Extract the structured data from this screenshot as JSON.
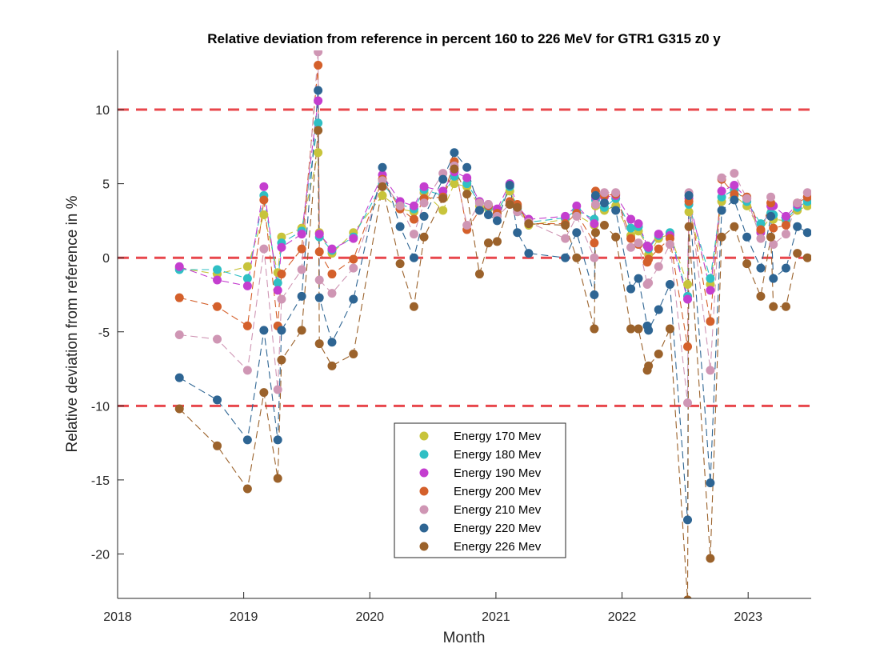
{
  "chart_data": {
    "type": "line",
    "title": "Relative deviation from reference in percent 160 to 226 MeV for GTR1 G315 z0 y",
    "xlabel": "Month",
    "ylabel": "Relative deviation from reference in %",
    "xlim": [
      2018,
      2023.5
    ],
    "ylim": [
      -23,
      14
    ],
    "xticks": [
      2018,
      2019,
      2020,
      2021,
      2022,
      2023
    ],
    "yticks": [
      -20,
      -15,
      -10,
      -5,
      0,
      5,
      10
    ],
    "grid": false,
    "legend_position": "lower-center",
    "reference_lines": [
      {
        "y": 10,
        "color": "#e8474c",
        "style": "dashed"
      },
      {
        "y": 0,
        "color": "#e8474c",
        "style": "dashed"
      },
      {
        "y": -10,
        "color": "#e8474c",
        "style": "dashed"
      }
    ],
    "x": [
      2018.49,
      2018.79,
      2019.03,
      2019.16,
      2019.27,
      2019.3,
      2019.46,
      2019.59,
      2019.6,
      2019.7,
      2019.87,
      2020.1,
      2020.24,
      2020.35,
      2020.43,
      2020.58,
      2020.67,
      2020.77,
      2020.87,
      2020.94,
      2021.01,
      2021.11,
      2021.17,
      2021.26,
      2021.55,
      2021.64,
      2021.78,
      2021.79,
      2021.86,
      2021.95,
      2022.07,
      2022.13,
      2022.2,
      2022.21,
      2022.29,
      2022.38,
      2022.52,
      2022.53,
      2022.7,
      2022.79,
      2022.89,
      2022.99,
      2023.1,
      2023.18,
      2023.2,
      2023.3,
      2023.39,
      2023.47
    ],
    "series": [
      {
        "name": "Energy 170 Mev",
        "color": "#c8c43b",
        "values": [
          -0.7,
          -1.1,
          -0.6,
          2.9,
          -1.0,
          1.4,
          2.0,
          7.1,
          1.7,
          0.3,
          1.7,
          4.2,
          3.3,
          3.1,
          4.4,
          3.2,
          5.0,
          4.8,
          3.5,
          3.3,
          3.2,
          4.5,
          3.5,
          2.2,
          2.6,
          2.9,
          2.2,
          3.5,
          3.2,
          3.5,
          1.5,
          1.8,
          0.8,
          0.2,
          1.3,
          1.6,
          -1.8,
          3.1,
          -1.8,
          3.8,
          4.2,
          3.5,
          1.8,
          2.8,
          2.6,
          2.5,
          3.2,
          3.5
        ]
      },
      {
        "name": "Energy 180 Mev",
        "color": "#2fbfc4",
        "values": [
          -0.8,
          -0.8,
          -1.4,
          4.2,
          -1.7,
          1.0,
          1.8,
          9.1,
          1.4,
          0.5,
          1.4,
          5.0,
          3.6,
          3.3,
          4.6,
          4.2,
          5.5,
          5.0,
          3.7,
          3.4,
          3.0,
          4.8,
          3.3,
          2.4,
          2.7,
          3.2,
          2.6,
          3.9,
          3.4,
          4.0,
          2.0,
          2.1,
          0.8,
          0.6,
          1.5,
          1.7,
          -2.6,
          3.6,
          -1.4,
          4.1,
          4.6,
          3.8,
          2.3,
          3.0,
          2.9,
          2.6,
          3.4,
          3.8
        ]
      },
      {
        "name": "Energy 190 Mev",
        "color": "#c43ecf",
        "values": [
          -0.6,
          -1.5,
          -1.9,
          4.8,
          -2.2,
          0.7,
          1.6,
          10.6,
          1.6,
          0.6,
          1.3,
          5.6,
          3.8,
          3.5,
          4.8,
          4.5,
          5.8,
          5.4,
          3.8,
          3.6,
          3.3,
          5.0,
          3.5,
          2.6,
          2.8,
          3.5,
          2.3,
          4.1,
          4.1,
          4.2,
          2.6,
          2.3,
          0.8,
          0.7,
          1.6,
          1.5,
          -2.8,
          4.0,
          -2.2,
          4.5,
          4.9,
          4.0,
          1.7,
          3.5,
          3.5,
          2.8,
          3.6,
          4.1
        ]
      },
      {
        "name": "Energy 200 Mev",
        "color": "#d4602b",
        "values": [
          -2.7,
          -3.3,
          -4.6,
          3.9,
          -4.6,
          -1.1,
          0.6,
          13.0,
          0.4,
          -1.1,
          -0.1,
          5.3,
          3.3,
          2.6,
          4.0,
          4.1,
          6.5,
          1.9,
          3.2,
          3.5,
          3.0,
          3.8,
          3.6,
          2.3,
          2.3,
          3.0,
          1.0,
          4.5,
          4.2,
          4.3,
          1.3,
          0.9,
          -0.3,
          -0.1,
          0.6,
          1.3,
          -6.0,
          3.8,
          -4.3,
          5.3,
          4.3,
          4.1,
          1.9,
          3.7,
          2.0,
          2.2,
          3.7,
          4.1
        ]
      },
      {
        "name": "Energy 210 Mev",
        "color": "#cf96b4",
        "values": [
          -5.2,
          -5.5,
          -7.6,
          0.6,
          -8.9,
          -2.8,
          -0.8,
          13.9,
          -1.5,
          -2.4,
          -0.7,
          5.2,
          3.5,
          1.6,
          3.7,
          5.7,
          6.2,
          2.2,
          3.7,
          3.6,
          2.8,
          3.6,
          3.1,
          2.4,
          1.3,
          2.8,
          0.0,
          3.6,
          4.4,
          4.4,
          0.7,
          1.0,
          -1.8,
          -1.7,
          -0.6,
          0.9,
          -9.8,
          4.4,
          -7.6,
          5.4,
          5.7,
          4.0,
          1.3,
          4.1,
          0.9,
          1.6,
          3.7,
          4.4
        ]
      },
      {
        "name": "Energy 220 Mev",
        "color": "#2e6593",
        "values": [
          -8.1,
          -9.6,
          -12.3,
          -4.9,
          -12.3,
          -4.9,
          -2.6,
          11.3,
          -2.7,
          -5.7,
          -2.8,
          6.1,
          2.1,
          0.0,
          2.8,
          5.3,
          7.1,
          6.1,
          3.2,
          2.9,
          2.5,
          4.9,
          1.7,
          0.3,
          0.0,
          1.7,
          -2.5,
          4.2,
          3.7,
          3.2,
          -2.1,
          -1.4,
          -4.6,
          -4.9,
          -3.5,
          -1.8,
          -17.7,
          4.2,
          -15.2,
          3.2,
          3.9,
          1.4,
          -0.7,
          2.8,
          -1.4,
          -0.7,
          2.1,
          1.7
        ]
      },
      {
        "name": "Energy 226 Mev",
        "color": "#9b622b",
        "values": [
          -10.2,
          -12.7,
          -15.6,
          -9.1,
          -14.9,
          -6.9,
          -4.9,
          8.6,
          -5.8,
          -7.3,
          -6.5,
          4.8,
          -0.4,
          -3.3,
          1.4,
          4.0,
          6.0,
          4.3,
          -1.1,
          1.0,
          1.1,
          3.6,
          3.4,
          2.3,
          2.2,
          0.0,
          -4.8,
          1.7,
          2.2,
          1.4,
          -4.8,
          -4.8,
          -7.6,
          -7.3,
          -6.5,
          -4.8,
          -23.1,
          2.1,
          -20.3,
          1.4,
          2.1,
          -0.4,
          -2.6,
          1.4,
          -3.3,
          -3.3,
          0.3,
          0.0
        ]
      }
    ]
  }
}
